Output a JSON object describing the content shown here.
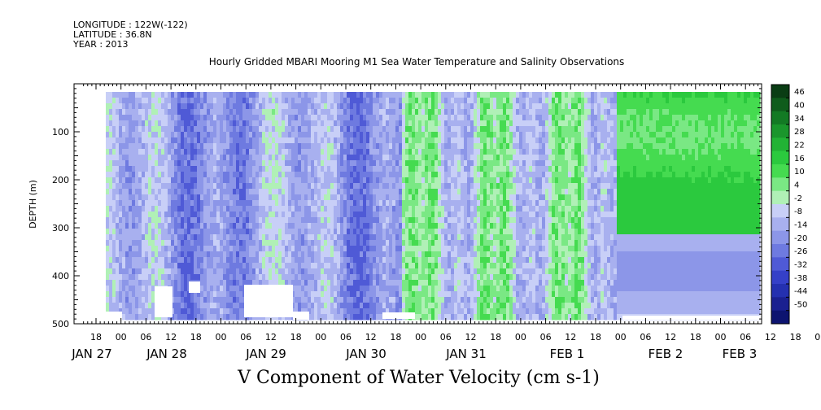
{
  "header": {
    "longitude": "LONGITUDE : 122W(-122)",
    "latitude": "LATITUDE : 36.8N",
    "year": "YEAR : 2013"
  },
  "chart_data": {
    "type": "heatmap",
    "title": "Hourly Gridded MBARI Mooring M1 Sea Water Temperature and Salinity Observations",
    "xlabel": "V Component of Water Velocity (cm s-1)",
    "ylabel": "DEPTH (m)",
    "x_range": [
      "JAN 27 12:00",
      "FEB 3 10:00"
    ],
    "ylim": [
      500,
      0
    ],
    "y_ticks": [
      100,
      200,
      300,
      400,
      500
    ],
    "x_hour_ticks": [
      "18",
      "00",
      "06",
      "12",
      "18",
      "00",
      "06",
      "12",
      "18",
      "00",
      "06",
      "12",
      "18",
      "00",
      "06",
      "12",
      "18",
      "00",
      "06",
      "12",
      "18",
      "00",
      "06",
      "12",
      "18",
      "00",
      "06",
      "12",
      "18",
      "00",
      "06"
    ],
    "x_day_labels": [
      "JAN 27",
      "JAN 28",
      "JAN 29",
      "JAN 30",
      "JAN 31",
      "FEB  1",
      "FEB  2",
      "FEB  3"
    ],
    "colorbar": {
      "labels": [
        "46",
        "40",
        "34",
        "28",
        "22",
        "16",
        "10",
        "4",
        "-2",
        "-8",
        "-14",
        "-20",
        "-26",
        "-32",
        "-38",
        "-44",
        "-50"
      ],
      "colors": [
        "#0a3d14",
        "#0f5c1c",
        "#137a24",
        "#1a962c",
        "#22b335",
        "#2bc93e",
        "#45db50",
        "#7ae884",
        "#b0f0b6",
        "#c8cff7",
        "#a8b0ef",
        "#8c96e8",
        "#6e7ae0",
        "#4f5ad6",
        "#3540c8",
        "#2430b0",
        "#1a2090",
        "#0d1470"
      ]
    },
    "grid": false
  }
}
